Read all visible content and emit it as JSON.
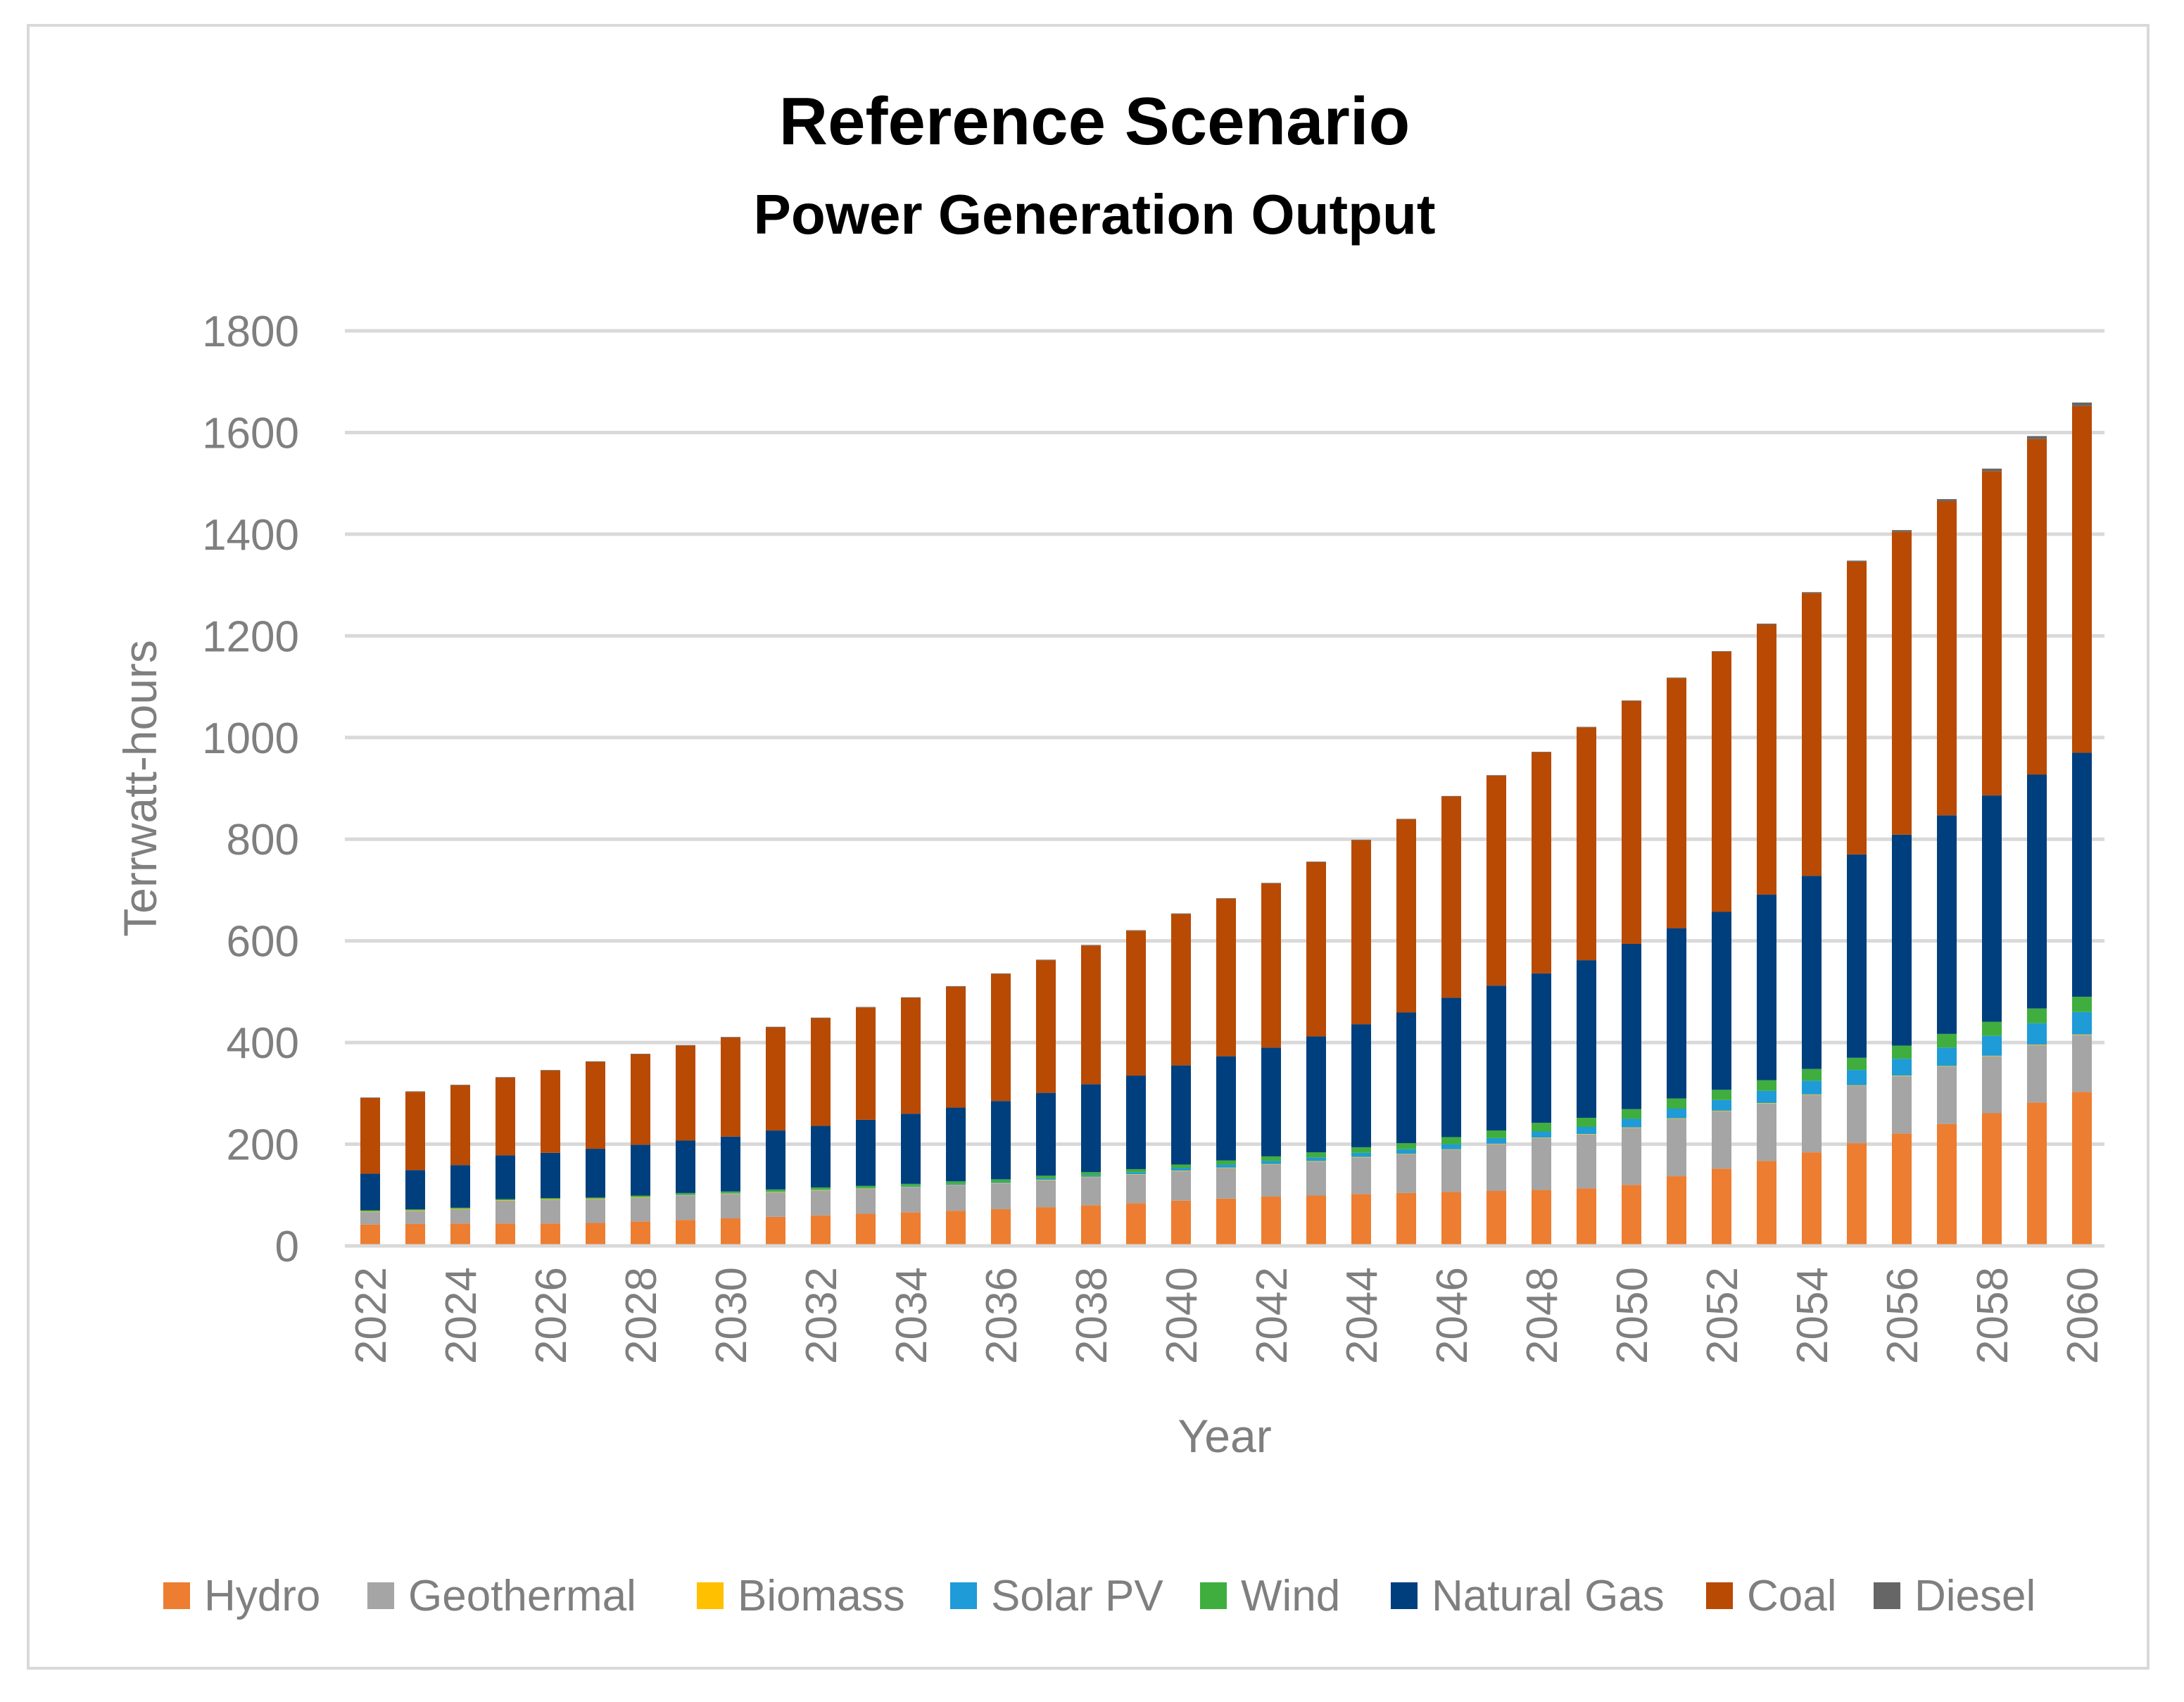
{
  "chart_data": {
    "type": "bar",
    "stacked": true,
    "title": "Reference Scenario",
    "subtitle": "Power Generation Output",
    "xlabel": "Year",
    "ylabel": "Terrwatt-hours",
    "ylim": [
      0,
      1800
    ],
    "yticks": [
      0,
      200,
      400,
      600,
      800,
      1000,
      1200,
      1400,
      1600,
      1800
    ],
    "grid": true,
    "legend_position": "bottom",
    "categories": [
      2022,
      2023,
      2024,
      2025,
      2026,
      2027,
      2028,
      2029,
      2030,
      2031,
      2032,
      2033,
      2034,
      2035,
      2036,
      2037,
      2038,
      2039,
      2040,
      2041,
      2042,
      2043,
      2044,
      2045,
      2046,
      2047,
      2048,
      2049,
      2050,
      2051,
      2052,
      2053,
      2054,
      2055,
      2056,
      2057,
      2058,
      2059,
      2060
    ],
    "xtick_labels": [
      "2022",
      "2024",
      "2026",
      "2028",
      "2030",
      "2032",
      "2034",
      "2036",
      "2038",
      "2040",
      "2042",
      "2044",
      "2046",
      "2048",
      "2050",
      "2052",
      "2054",
      "2056",
      "2058",
      "2060"
    ],
    "series": [
      {
        "name": "Hydro",
        "color": "#ED7D31",
        "values": [
          42,
          43,
          44,
          44,
          44,
          45,
          48,
          51,
          54,
          57,
          60,
          63,
          66,
          69,
          72,
          76,
          80,
          84,
          89,
          93,
          97,
          99,
          102,
          104,
          106,
          108,
          110,
          113,
          120,
          137,
          152,
          167,
          184,
          202,
          221,
          240,
          261,
          282,
          303
        ]
      },
      {
        "name": "Geothermal",
        "color": "#A5A5A5",
        "values": [
          25,
          26,
          28,
          45,
          47,
          47,
          47,
          48,
          48,
          48,
          49,
          49,
          49,
          50,
          51,
          53,
          55,
          56,
          58,
          60,
          63,
          67,
          72,
          76,
          83,
          92,
          102,
          106,
          112,
          113,
          113,
          113,
          113,
          113,
          113,
          113,
          112,
          113,
          112
        ]
      },
      {
        "name": "Biomass",
        "color": "#FFC000",
        "values": [
          1,
          1,
          1,
          1,
          1,
          1,
          1,
          1,
          1,
          1,
          1,
          1,
          1,
          1,
          1,
          1,
          1,
          1,
          1,
          1,
          1,
          1,
          1,
          1,
          1,
          1,
          1,
          1,
          1,
          1,
          1,
          1,
          1,
          1,
          1,
          1,
          1,
          1,
          1
        ]
      },
      {
        "name": "Solar PV",
        "color": "#1F9BD7",
        "values": [
          0,
          0,
          0,
          0,
          0,
          0,
          0,
          1,
          1,
          1,
          1,
          1,
          2,
          2,
          2,
          3,
          3,
          4,
          5,
          6,
          6,
          7,
          8,
          9,
          10,
          11,
          12,
          14,
          17,
          19,
          21,
          24,
          27,
          30,
          33,
          36,
          39,
          42,
          44
        ]
      },
      {
        "name": "Wind",
        "color": "#3FAE3F",
        "values": [
          2,
          2,
          2,
          2,
          2,
          2,
          3,
          3,
          3,
          4,
          4,
          4,
          4,
          5,
          5,
          5,
          6,
          6,
          7,
          8,
          9,
          10,
          11,
          12,
          14,
          15,
          17,
          18,
          19,
          20,
          20,
          21,
          23,
          24,
          26,
          27,
          28,
          29,
          30
        ]
      },
      {
        "name": "Natural Gas",
        "color": "#003F7D",
        "values": [
          72,
          77,
          84,
          86,
          89,
          96,
          100,
          103,
          108,
          116,
          121,
          130,
          138,
          145,
          154,
          163,
          173,
          184,
          195,
          205,
          214,
          228,
          242,
          257,
          274,
          285,
          294,
          310,
          325,
          335,
          350,
          365,
          380,
          400,
          415,
          430,
          445,
          460,
          480
        ]
      },
      {
        "name": "Coal",
        "color": "#B84A04",
        "values": [
          149,
          154,
          157,
          153,
          162,
          171,
          178,
          187,
          195,
          203,
          212,
          221,
          228,
          238,
          250,
          261,
          273,
          285,
          298,
          310,
          323,
          343,
          362,
          380,
          396,
          413,
          435,
          458,
          478,
          492,
          512,
          531,
          556,
          576,
          596,
          618,
          638,
          660,
          682
        ]
      },
      {
        "name": "Diesel",
        "color": "#666666",
        "values": [
          1,
          1,
          1,
          1,
          1,
          1,
          1,
          1,
          1,
          1,
          1,
          1,
          1,
          1,
          1,
          1,
          1,
          1,
          1,
          1,
          1,
          1,
          1,
          1,
          1,
          1,
          1,
          1,
          1,
          1,
          1,
          2,
          2,
          2,
          3,
          4,
          5,
          6,
          7
        ]
      }
    ]
  }
}
